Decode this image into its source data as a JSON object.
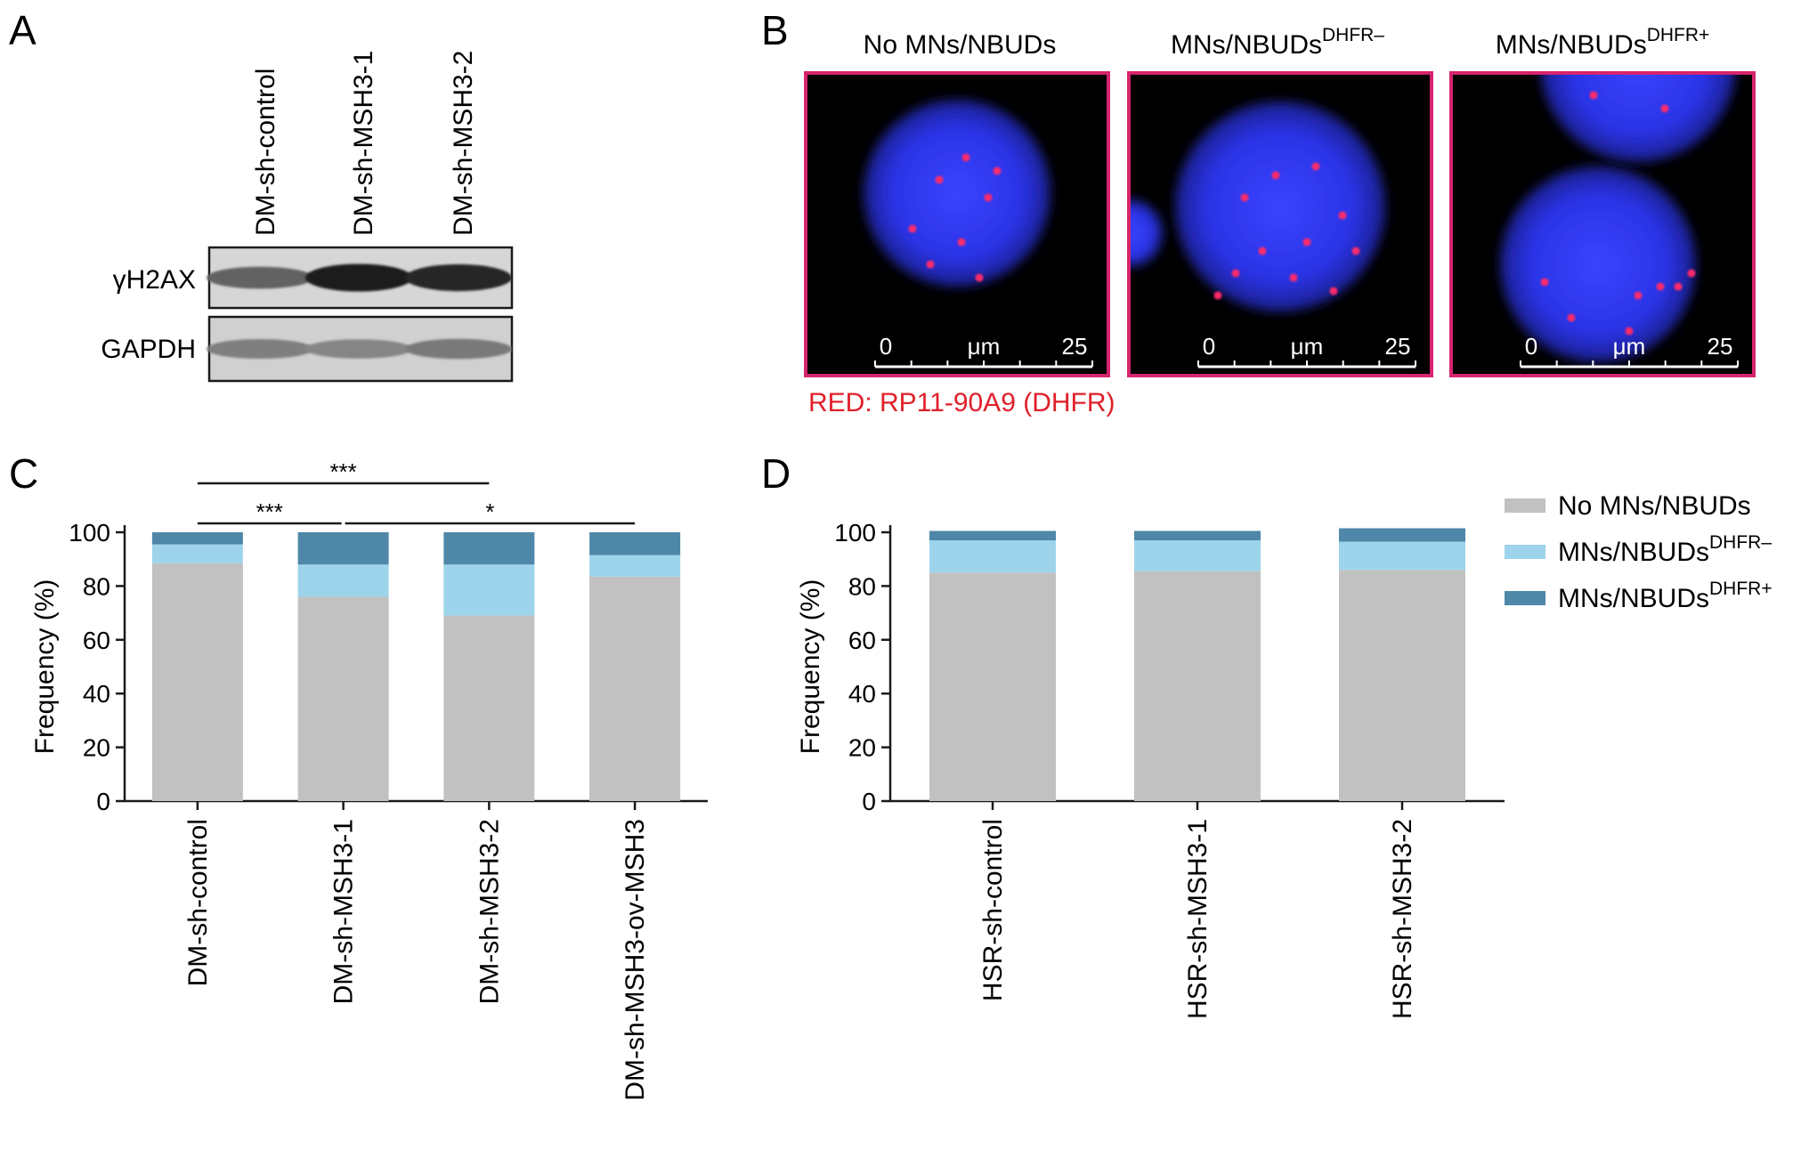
{
  "panels": {
    "a": {
      "letter": "A",
      "lanes": [
        "DM-sh-control",
        "DM-sh-MSH3-1",
        "DM-sh-MSH3-2"
      ],
      "blots": [
        {
          "label": "γH2AX",
          "intensity": [
            0.6,
            0.95,
            0.9
          ]
        },
        {
          "label": "GAPDH",
          "intensity": [
            0.45,
            0.42,
            0.48
          ]
        }
      ]
    },
    "b": {
      "letter": "B",
      "images": [
        {
          "title": "No MNs/NBUDs",
          "sup": ""
        },
        {
          "title": "MNs/NBUDs",
          "sup": "DHFR–"
        },
        {
          "title": "MNs/NBUDs",
          "sup": "DHFR+"
        }
      ],
      "scale": {
        "start": "0",
        "unit": "μm",
        "end": "25"
      },
      "probe_label": "RED: RP11-90A9 (DHFR)",
      "colors": {
        "frame": "#d6246e",
        "nucleus": "#2a33e6",
        "probe": "#ff2a6a",
        "background": "#000000"
      }
    },
    "c": {
      "letter": "C"
    },
    "d": {
      "letter": "D"
    }
  },
  "legend": [
    {
      "label": "No MNs/NBUDs",
      "sup": "",
      "color": "#c1c1c1"
    },
    {
      "label": "MNs/NBUDs",
      "sup": "DHFR–",
      "color": "#9dd4eb"
    },
    {
      "label": "MNs/NBUDs",
      "sup": "DHFR+",
      "color": "#4e87a8"
    }
  ],
  "chart_data": [
    {
      "panel": "C",
      "type": "bar",
      "stacked": true,
      "categories": [
        "DM-sh-control",
        "DM-sh-MSH3-1",
        "DM-sh-MSH3-2",
        "DM-sh-MSH3-ov-MSH3"
      ],
      "series": [
        {
          "name": "No MNs/NBUDs",
          "values": [
            88.5,
            76,
            69,
            83.5
          ]
        },
        {
          "name": "MNs/NBUDs DHFR–",
          "values": [
            7,
            12,
            19,
            8
          ]
        },
        {
          "name": "MNs/NBUDs DHFR+",
          "values": [
            4.5,
            12,
            12,
            8.5
          ]
        }
      ],
      "xlabel": "",
      "ylabel": "Frequency (%)",
      "ylim": [
        0,
        100
      ],
      "yticks": [
        0,
        20,
        40,
        60,
        80,
        100
      ],
      "significance": [
        {
          "from": 0,
          "to": 2,
          "label": "***"
        },
        {
          "from": 0,
          "to": 1,
          "label": "***"
        },
        {
          "from": 1,
          "to": 3,
          "label": "*"
        }
      ]
    },
    {
      "panel": "D",
      "type": "bar",
      "stacked": true,
      "categories": [
        "HSR-sh-control",
        "HSR-sh-MSH3-1",
        "HSR-sh-MSH3-2"
      ],
      "series": [
        {
          "name": "No MNs/NBUDs",
          "values": [
            85,
            85.5,
            86
          ]
        },
        {
          "name": "MNs/NBUDs DHFR–",
          "values": [
            12,
            11.5,
            10.5
          ]
        },
        {
          "name": "MNs/NBUDs DHFR+",
          "values": [
            3.5,
            3.5,
            5
          ]
        }
      ],
      "xlabel": "",
      "ylabel": "Frequency (%)",
      "ylim": [
        0,
        100
      ],
      "yticks": [
        0,
        20,
        40,
        60,
        80,
        100
      ],
      "legend_position": "top-right"
    }
  ]
}
